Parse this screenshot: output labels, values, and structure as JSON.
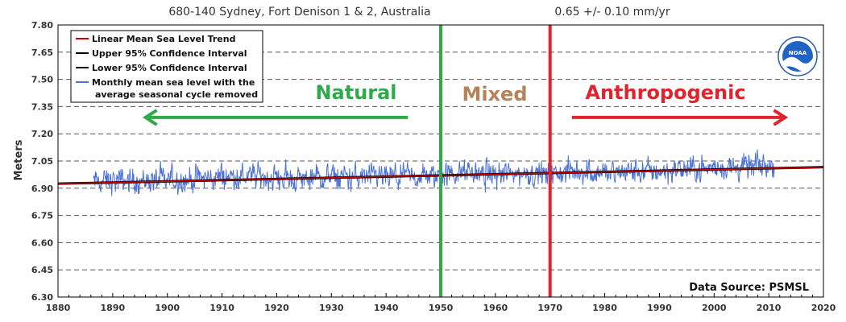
{
  "header": {
    "station": "680-140 Sydney, Fort Denison 1 & 2, Australia",
    "trend": "0.65 +/-  0.10 mm/yr"
  },
  "logo": {
    "text": "NOAA"
  },
  "source": "Data Source: PSMSL",
  "eras": [
    {
      "label": "Natural",
      "color": "#2eaa4a"
    },
    {
      "label": "Mixed",
      "color": "#b5825a"
    },
    {
      "label": "Anthropogenic",
      "color": "#e0242e"
    }
  ],
  "markers": [
    {
      "x": 1950,
      "color": "#2eaa4a"
    },
    {
      "x": 1970,
      "color": "#e0242e"
    }
  ],
  "arrows": [
    {
      "from": 1944,
      "to": 1896,
      "y": 7.29,
      "color": "#2eaa4a"
    },
    {
      "from": 1974,
      "to": 2013,
      "y": 7.29,
      "color": "#e0242e"
    }
  ],
  "chart_data": {
    "type": "line",
    "xlabel": "",
    "ylabel": "Meters",
    "xlim": [
      1880,
      2020
    ],
    "ylim": [
      6.3,
      7.8
    ],
    "xticks": [
      1880,
      1890,
      1900,
      1910,
      1920,
      1930,
      1940,
      1950,
      1960,
      1970,
      1980,
      1990,
      2000,
      2010,
      2020
    ],
    "yticks": [
      6.3,
      6.45,
      6.6,
      6.75,
      6.9,
      7.05,
      7.2,
      7.35,
      7.5,
      7.65,
      7.8
    ],
    "grid": "horizontal dashed",
    "legend_position": "top-left",
    "legend": [
      {
        "label": "Linear Mean Sea Level Trend",
        "color": "#cc0000"
      },
      {
        "label": "Upper 95% Confidence Interval",
        "color": "#000000"
      },
      {
        "label": "Lower 95% Confidence Interval",
        "color": "#000000"
      },
      {
        "label": "Monthly mean sea level with the",
        "label2": "average seasonal cycle removed",
        "color": "#4a72d8"
      }
    ],
    "trend_line": {
      "x": [
        1880,
        2020
      ],
      "y": [
        6.925,
        7.016
      ],
      "color": "#cc0000"
    },
    "upper_ci": {
      "x": [
        1880,
        2020
      ],
      "y": [
        6.929,
        7.02
      ],
      "color": "#000000"
    },
    "lower_ci": {
      "x": [
        1880,
        2020
      ],
      "y": [
        6.921,
        7.012
      ],
      "color": "#000000"
    },
    "monthly_series": {
      "name": "Monthly mean sea level with the average seasonal cycle removed",
      "x_start": 1886.5,
      "x_end": 2011.0,
      "year": [
        1887,
        1890,
        1895,
        1900,
        1905,
        1910,
        1915,
        1920,
        1925,
        1930,
        1935,
        1940,
        1945,
        1950,
        1955,
        1960,
        1965,
        1970,
        1975,
        1980,
        1985,
        1990,
        1995,
        2000,
        2005,
        2010
      ],
      "mean": [
        6.935,
        6.94,
        6.942,
        6.945,
        6.95,
        6.962,
        6.965,
        6.958,
        6.952,
        6.958,
        6.962,
        6.96,
        6.962,
        6.97,
        6.985,
        6.978,
        6.98,
        6.972,
        6.995,
        6.985,
        6.99,
        6.995,
        7.005,
        7.01,
        7.02,
        7.025
      ],
      "amplitude": 0.055,
      "color": "#4a72d8"
    }
  }
}
